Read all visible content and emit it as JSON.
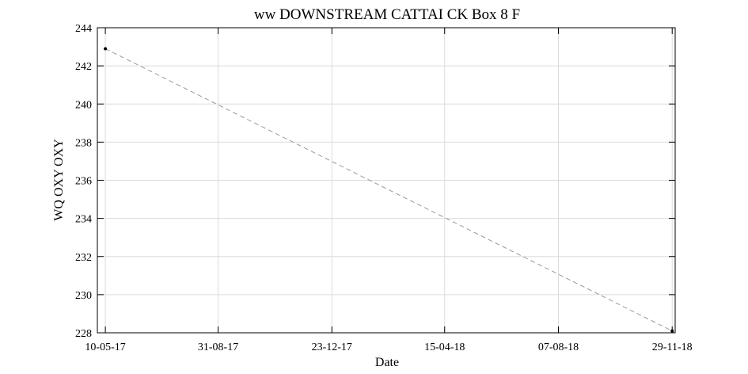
{
  "chart_data": {
    "type": "line",
    "title": "ww DOWNSTREAM CATTAI CK Box 8 F",
    "xlabel": "Date",
    "ylabel": "WQ OXY OXY",
    "x_ticks": [
      "10-05-17",
      "31-08-17",
      "23-12-17",
      "15-04-18",
      "07-08-18",
      "29-11-18"
    ],
    "y_ticks": [
      228,
      230,
      232,
      234,
      236,
      238,
      240,
      242,
      244
    ],
    "xlim": [
      "2017-05-02",
      "2018-12-02"
    ],
    "ylim": [
      228,
      244
    ],
    "grid": true,
    "series": [
      {
        "x": [
          "2017-05-10",
          "2018-11-29"
        ],
        "y": [
          242.9,
          228.1
        ],
        "line_style": "dashed",
        "line_color": "#999999",
        "marker": "dot",
        "marker_color": "#000000"
      }
    ]
  }
}
